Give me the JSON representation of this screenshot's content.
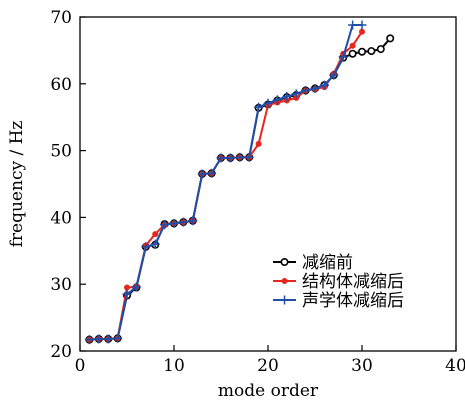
{
  "chart_data": {
    "type": "line",
    "title": "",
    "xlabel": "mode order",
    "ylabel": "frequency / Hz",
    "xlim": [
      0,
      40
    ],
    "ylim": [
      20,
      70
    ],
    "xticks": [
      0,
      10,
      20,
      30,
      40
    ],
    "yticks": [
      20,
      30,
      40,
      50,
      60,
      70
    ],
    "grid": false,
    "legend_position": "bottom-right",
    "series": [
      {
        "name": "减缩前",
        "color": "#000000",
        "marker": "circle",
        "x": [
          1,
          2,
          3,
          4,
          5,
          6,
          7,
          8,
          9,
          10,
          11,
          12,
          13,
          14,
          15,
          16,
          17,
          18,
          19,
          20,
          21,
          22,
          23,
          24,
          25,
          26,
          27,
          28,
          29,
          30,
          31,
          32,
          33
        ],
        "y": [
          21.7,
          21.8,
          21.8,
          21.9,
          28.3,
          29.5,
          35.6,
          35.9,
          39.0,
          39.1,
          39.3,
          39.5,
          46.5,
          46.6,
          48.9,
          48.9,
          49.0,
          49.0,
          56.4,
          56.9,
          57.5,
          58.0,
          58.3,
          59.0,
          59.3,
          59.8,
          61.3,
          63.9,
          64.5,
          64.8,
          64.9,
          65.2,
          66.8
        ]
      },
      {
        "name": "结构体减缩后",
        "color": "#e8261e",
        "marker": "dot",
        "x": [
          1,
          2,
          3,
          4,
          5,
          6,
          7,
          8,
          9,
          10,
          11,
          12,
          13,
          14,
          15,
          16,
          17,
          18,
          19,
          20,
          21,
          22,
          23,
          24,
          25,
          26,
          27,
          28,
          29,
          30
        ],
        "y": [
          21.7,
          21.8,
          21.8,
          21.9,
          29.5,
          29.6,
          35.8,
          37.5,
          38.9,
          39.1,
          39.3,
          39.5,
          46.5,
          46.6,
          48.9,
          48.9,
          49.0,
          49.0,
          51.0,
          56.8,
          57.2,
          57.5,
          57.9,
          59.0,
          59.2,
          59.5,
          61.5,
          64.5,
          65.7,
          67.8
        ]
      },
      {
        "name": "声学体减缩后",
        "color": "#1f4fa8",
        "marker": "plus",
        "x": [
          1,
          2,
          3,
          4,
          5,
          6,
          7,
          8,
          9,
          10,
          11,
          12,
          13,
          14,
          15,
          16,
          17,
          18,
          19,
          20,
          21,
          22,
          23,
          24,
          25,
          26,
          27,
          28,
          29,
          30
        ],
        "y": [
          21.7,
          21.8,
          21.8,
          21.9,
          28.5,
          29.6,
          35.6,
          36.0,
          38.9,
          39.1,
          39.3,
          39.5,
          46.5,
          46.6,
          48.9,
          48.9,
          49.0,
          49.0,
          56.5,
          57.1,
          57.6,
          58.1,
          58.5,
          59.0,
          59.3,
          59.8,
          61.3,
          64.0,
          68.8,
          68.8
        ]
      }
    ]
  }
}
